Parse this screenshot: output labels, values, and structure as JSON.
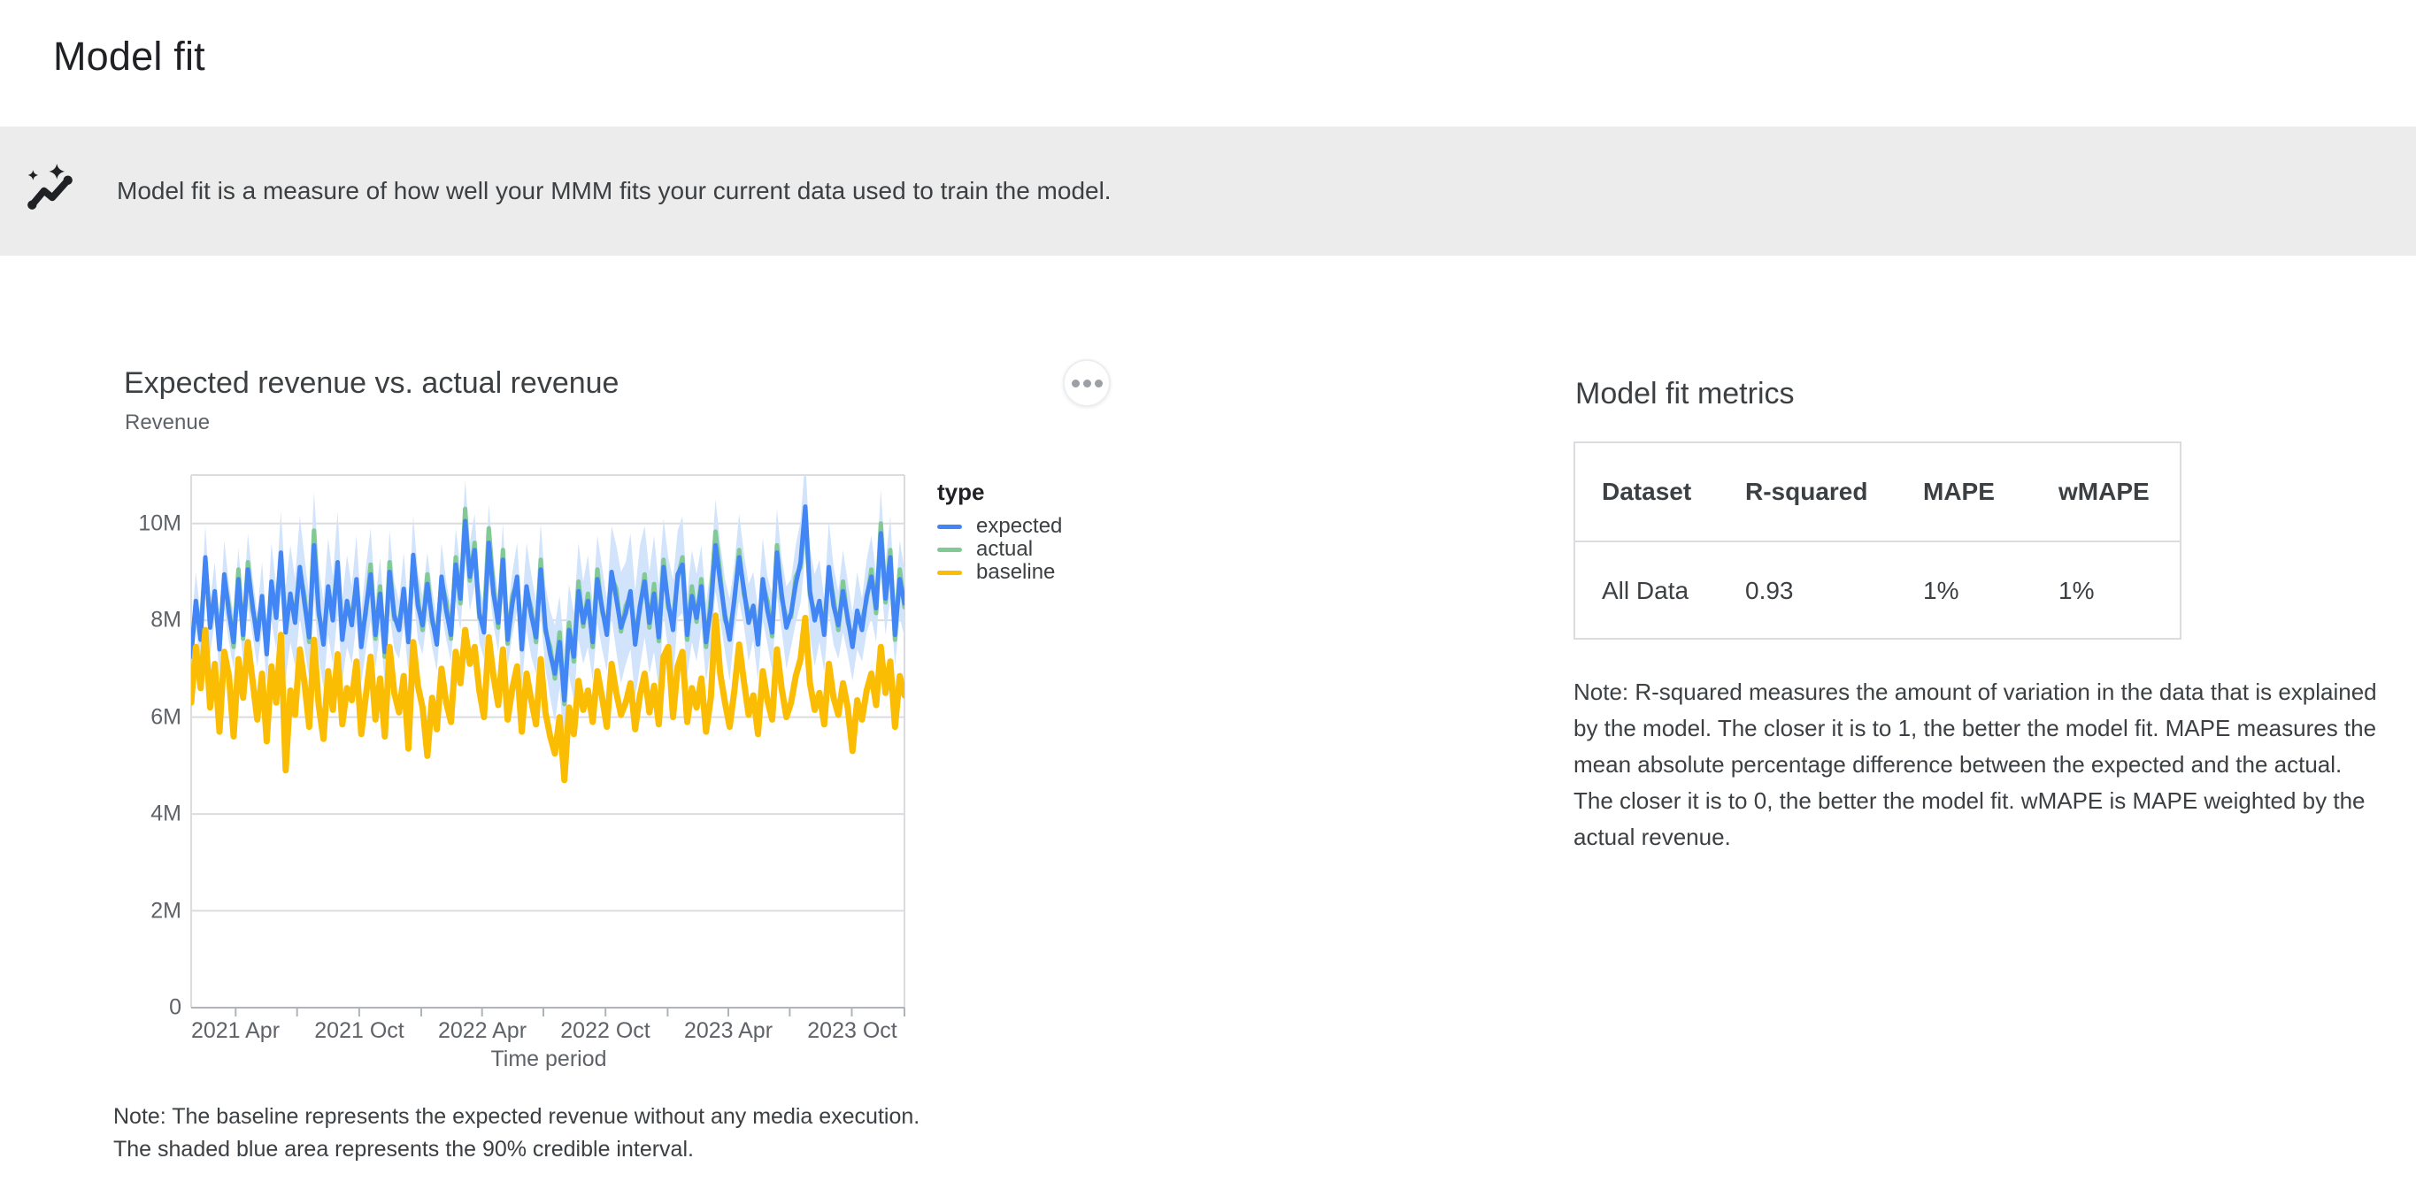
{
  "page": {
    "title": "Model fit"
  },
  "banner": {
    "icon": "trend-sparkle-icon",
    "text": "Model fit is a measure of how well your MMM fits your current data used to train the model."
  },
  "chart_section": {
    "title": "Expected revenue vs. actual revenue",
    "subtitle": "Revenue",
    "legend_title": "type",
    "note_line1": "Note: The baseline represents the expected revenue without any media execution.",
    "note_line2": "The shaded blue area represents the 90% credible interval."
  },
  "chart_data": {
    "type": "line",
    "title": "Expected revenue vs. actual revenue",
    "xlabel": "Time period",
    "ylabel": "Revenue",
    "unit": "millions",
    "ylim": [
      0,
      11
    ],
    "y_ticks": [
      "0",
      "2M",
      "4M",
      "6M",
      "8M",
      "10M"
    ],
    "y_tick_values": [
      0,
      2,
      4,
      6,
      8,
      10
    ],
    "x_tick_labels": [
      "2021 Apr",
      "2021 Oct",
      "2022 Apr",
      "2022 Oct",
      "2023 Apr",
      "2023 Oct"
    ],
    "x_start": "2021-01-25",
    "interval_days": 7,
    "band_label": "90% credible interval",
    "band_color": "#d2e3fc",
    "series": [
      {
        "name": "expected",
        "color": "#4285f4",
        "values": [
          7.25,
          8.4,
          7.6,
          9.3,
          7.85,
          8.6,
          7.4,
          8.95,
          8.15,
          7.55,
          8.85,
          7.7,
          9.05,
          8.3,
          7.6,
          8.5,
          7.3,
          8.8,
          8.05,
          9.4,
          7.75,
          8.55,
          7.95,
          9.1,
          8.35,
          7.65,
          9.55,
          8.2,
          7.5,
          8.7,
          8,
          9.2,
          7.6,
          8.4,
          7.9,
          8.85,
          7.45,
          8.25,
          8.95,
          7.7,
          8.55,
          7.35,
          9,
          8.1,
          7.8,
          8.65,
          7.55,
          9.35,
          8.3,
          7.9,
          8.75,
          8.05,
          7.5,
          8.9,
          8.2,
          7.7,
          9.15,
          8.45,
          10.05,
          8.9,
          9.45,
          8.15,
          7.75,
          9.6,
          8.55,
          7.95,
          9.25,
          7.6,
          8.35,
          8.9,
          7.4,
          8.7,
          8.1,
          7.65,
          9.05,
          7.85,
          7.3,
          6.9,
          7.55,
          6.35,
          7.8,
          7.25,
          8.6,
          7.95,
          8.4,
          7.55,
          8.85,
          8.25,
          7.7,
          9,
          8.45,
          7.85,
          8.15,
          8.6,
          7.5,
          8.3,
          8.8,
          7.95,
          8.55,
          7.65,
          9.1,
          8.35,
          7.8,
          8.95,
          9.15,
          7.7,
          8.5,
          8.05,
          8.7,
          7.55,
          8.25,
          9.55,
          8.8,
          8.1,
          7.6,
          8.45,
          9.3,
          8.65,
          7.95,
          8.3,
          7.5,
          8.85,
          8.2,
          7.75,
          9.4,
          8.55,
          7.85,
          8.15,
          8.75,
          9.2,
          10.35,
          8.6,
          8,
          8.4,
          7.7,
          9.1,
          8.3,
          7.9,
          8.6,
          8.05,
          7.45,
          8.2,
          7.8,
          8.5,
          8.9,
          8.25,
          9.8,
          8.45,
          9.3,
          7.7,
          8.85,
          8.35
        ]
      },
      {
        "name": "actual",
        "color": "#81c995",
        "values": [
          7.4,
          8.3,
          7.8,
          9.22,
          8,
          8.5,
          7.6,
          8.87,
          8.3,
          7.45,
          9.05,
          7.62,
          9.2,
          8.2,
          7.8,
          8.42,
          7.45,
          8.7,
          8.25,
          9.32,
          7.9,
          8.45,
          8.15,
          9.02,
          8.5,
          7.55,
          9.85,
          8.12,
          7.65,
          8.6,
          8.2,
          9.12,
          7.75,
          8.3,
          8.1,
          8.77,
          7.6,
          8.15,
          9.15,
          7.62,
          8.7,
          7.25,
          9.2,
          8.02,
          7.95,
          8.55,
          7.75,
          9.27,
          8.45,
          7.8,
          8.95,
          7.97,
          7.65,
          8.8,
          8.4,
          7.62,
          9.3,
          8.35,
          10.3,
          8.82,
          9.6,
          8.05,
          7.95,
          9.9,
          8.7,
          7.85,
          9.45,
          7.52,
          8.5,
          8.8,
          7.6,
          8.62,
          8.25,
          7.55,
          9.25,
          7.77,
          7.45,
          6.8,
          7.75,
          6.27,
          7.95,
          7.15,
          8.8,
          7.87,
          8.55,
          7.45,
          9.05,
          8.17,
          7.85,
          8.9,
          8.65,
          7.77,
          8.3,
          8.5,
          7.7,
          8.22,
          8.95,
          7.85,
          8.75,
          7.57,
          9.25,
          8.25,
          8,
          8.87,
          9.3,
          7.6,
          8.7,
          7.97,
          8.85,
          7.45,
          8.45,
          9.83,
          8.95,
          8,
          7.8,
          8.37,
          9.45,
          8.55,
          8.15,
          8.22,
          7.65,
          8.75,
          8.4,
          7.67,
          9.55,
          8.45,
          8.05,
          8.07,
          8.9,
          9.1,
          10.2,
          8.52,
          8.15,
          8.3,
          7.9,
          9.02,
          8.45,
          7.8,
          8.8,
          7.97,
          7.6,
          8.1,
          8,
          8.42,
          9.05,
          8.15,
          10,
          8.37,
          9.45,
          7.6,
          9.05,
          8.27
        ]
      },
      {
        "name": "baseline",
        "color": "#fbbc04",
        "values": [
          6.3,
          7.45,
          6.6,
          7.8,
          6.2,
          7.1,
          5.7,
          7.35,
          6.85,
          5.6,
          7.2,
          6.4,
          7.55,
          6.75,
          5.95,
          6.9,
          5.5,
          7.05,
          6.3,
          7.7,
          4.9,
          6.55,
          6.05,
          7.4,
          6.7,
          5.8,
          7.6,
          6.25,
          5.55,
          6.95,
          6.15,
          7.3,
          5.85,
          6.6,
          6.35,
          7.15,
          5.65,
          6.45,
          7.25,
          5.95,
          6.8,
          5.6,
          7.45,
          6.5,
          6.1,
          6.85,
          5.35,
          7.55,
          6.65,
          6.2,
          5.2,
          6.4,
          5.75,
          7,
          6.3,
          5.9,
          7.35,
          6.7,
          7.8,
          7.1,
          7.45,
          6.55,
          6,
          7.65,
          6.85,
          6.25,
          7.4,
          5.95,
          6.6,
          7.05,
          5.7,
          6.9,
          6.35,
          5.85,
          7.2,
          6.1,
          5.6,
          5.25,
          6,
          4.7,
          6.2,
          5.65,
          6.75,
          6.15,
          6.55,
          5.9,
          6.95,
          6.4,
          5.8,
          7.1,
          6.5,
          6.05,
          6.3,
          6.7,
          5.75,
          6.45,
          6.9,
          6.1,
          6.65,
          5.85,
          7.25,
          7.45,
          6,
          7.05,
          7.35,
          5.9,
          6.6,
          6.2,
          6.8,
          5.7,
          6.4,
          8.1,
          6.9,
          6.3,
          5.8,
          6.55,
          7.5,
          6.75,
          6.05,
          6.45,
          5.65,
          6.95,
          6.35,
          5.95,
          7.4,
          6.6,
          6,
          6.3,
          6.85,
          7.2,
          8.05,
          6.7,
          6.15,
          6.5,
          5.85,
          7.1,
          6.4,
          6.05,
          6.7,
          6.2,
          5.3,
          6.35,
          5.95,
          6.55,
          6.9,
          6.25,
          7.45,
          6.5,
          7.15,
          5.8,
          6.85,
          6.45
        ]
      }
    ],
    "ci_half_width": [
      0.55,
      0.6,
      0.5,
      0.65,
      0.55,
      0.6,
      0.5,
      0.7,
      0.6,
      0.55,
      0.65,
      0.55,
      0.75,
      0.6,
      0.55,
      0.7,
      0.6,
      0.8,
      0.65,
      0.85,
      0.95,
      1,
      0.9,
      1.05,
      0.95,
      0.85,
      1.1,
      0.95,
      0.9,
      1,
      0.9,
      1.05,
      0.85,
      0.95,
      0.8,
      0.9,
      0.75,
      0.85,
      0.95,
      0.7,
      0.75,
      0.65,
      0.85,
      0.7,
      0.6,
      0.75,
      0.65,
      0.8,
      0.7,
      0.6,
      0.65,
      0.6,
      0.55,
      0.7,
      0.6,
      0.55,
      0.75,
      0.65,
      0.85,
      0.7,
      0.75,
      0.6,
      0.55,
      0.8,
      0.65,
      0.6,
      0.75,
      0.55,
      0.65,
      0.7,
      0.8,
      0.9,
      0.85,
      0.75,
      0.95,
      0.85,
      0.9,
      1,
      0.95,
      1.05,
      0.95,
      0.9,
      1,
      0.85,
      0.95,
      0.8,
      0.9,
      0.85,
      0.75,
      0.95,
      1.1,
      1.15,
      1.05,
      1.2,
      1.1,
      1.25,
      1.15,
      1.05,
      1.2,
      1.1,
      1,
      0.95,
      1.05,
      0.9,
      1,
      0.85,
      0.95,
      0.9,
      0.85,
      0.8,
      0.85,
      0.95,
      0.8,
      0.75,
      0.85,
      0.7,
      0.9,
      0.75,
      0.8,
      0.7,
      0.75,
      0.85,
      0.7,
      0.8,
      0.9,
      0.75,
      0.85,
      0.7,
      0.8,
      0.85,
      1,
      0.9,
      0.95,
      0.85,
      0.75,
      0.95,
      0.8,
      0.7,
      0.85,
      0.75,
      0.7,
      0.8,
      0.65,
      0.75,
      0.85,
      0.7,
      0.9,
      0.75,
      0.85,
      0.65,
      0.8,
      0.7
    ]
  },
  "metrics_section": {
    "title": "Model fit metrics",
    "table": {
      "headers": [
        "Dataset",
        "R-squared",
        "MAPE",
        "wMAPE"
      ],
      "rows": [
        [
          "All Data",
          "0.93",
          "1%",
          "1%"
        ]
      ]
    },
    "note": "Note: R-squared measures the amount of variation in the data that is explained by the model. The closer it is to 1, the better the model fit. MAPE measures the mean absolute percentage difference between the expected and the actual. The closer it is to 0, the better the model fit. wMAPE is MAPE weighted by the actual revenue."
  },
  "colors": {
    "banner_bg": "#ececec",
    "grid": "#dadce0",
    "axis": "#b0b4b9",
    "text_primary": "#202124",
    "text_secondary": "#5f6368"
  }
}
